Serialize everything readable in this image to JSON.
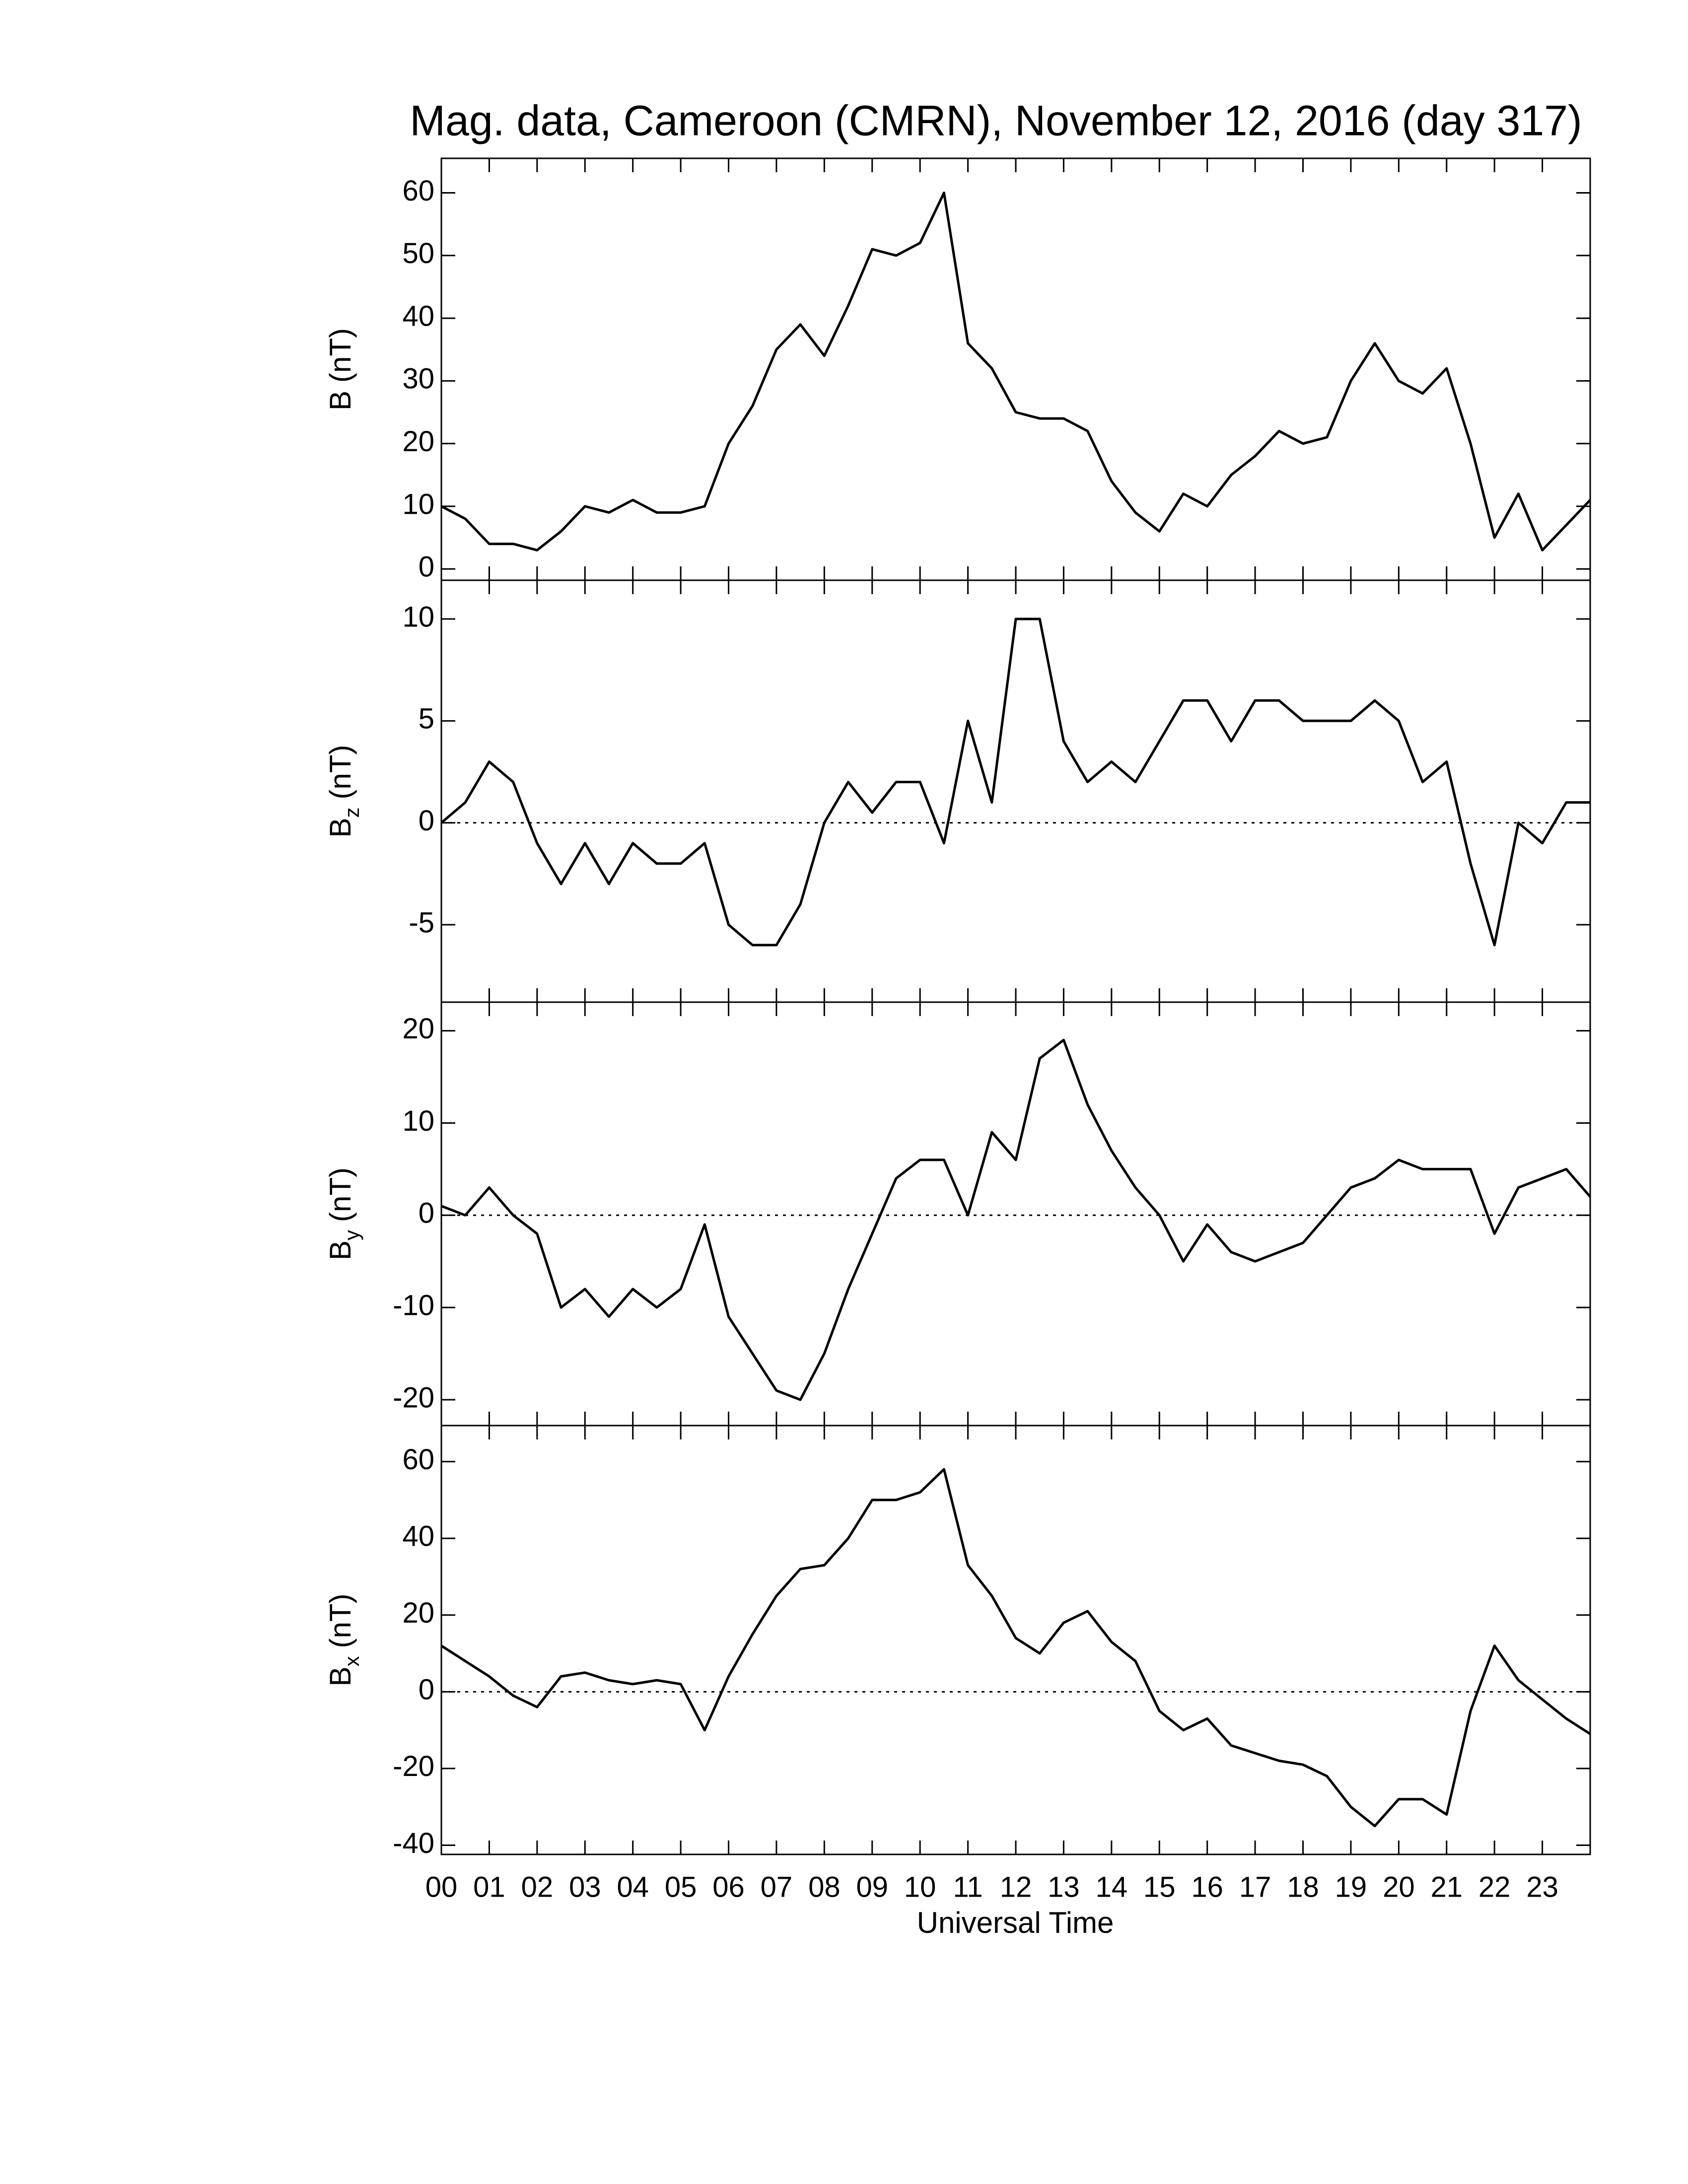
{
  "chart_data": [
    {
      "type": "line",
      "title": "Mag. data, Cameroon (CMRN), November 12, 2016 (day 317)",
      "ylabel": {
        "text": "B",
        "sub": "",
        "rest": "(nT)"
      },
      "x": [
        0,
        0.5,
        1,
        1.5,
        2,
        2.5,
        3,
        3.5,
        4,
        4.5,
        5,
        5.5,
        6,
        6.5,
        7,
        7.5,
        8,
        8.5,
        9,
        9.5,
        10,
        10.5,
        11,
        11.5,
        12,
        12.5,
        13,
        13.5,
        14,
        14.5,
        15,
        15.5,
        16,
        16.5,
        17,
        17.5,
        18,
        18.5,
        19,
        19.5,
        20,
        20.5,
        21,
        21.5,
        22,
        22.5,
        23,
        23.5,
        24
      ],
      "values": [
        10,
        8,
        4,
        4,
        3,
        6,
        10,
        9,
        11,
        9,
        9,
        10,
        20,
        26,
        35,
        39,
        34,
        42,
        51,
        50,
        52,
        60,
        36,
        32,
        25,
        24,
        24,
        22,
        14,
        9,
        6,
        12,
        10,
        15,
        18,
        22,
        20,
        21,
        30,
        36,
        30,
        28,
        32,
        20,
        5,
        12,
        3,
        7,
        11
      ],
      "color": "#000000",
      "xlim": [
        0,
        24
      ],
      "ylim": [
        -1.8,
        65.5
      ],
      "yticks": [
        0,
        10,
        20,
        30,
        40,
        50,
        60
      ],
      "zero_line": false
    },
    {
      "type": "line",
      "ylabel": {
        "text": "B",
        "sub": "z",
        "rest": "(nT)"
      },
      "x": [
        0,
        0.5,
        1,
        1.5,
        2,
        2.5,
        3,
        3.5,
        4,
        4.5,
        5,
        5.5,
        6,
        6.5,
        7,
        7.5,
        8,
        8.5,
        9,
        9.5,
        10,
        10.5,
        11,
        11.5,
        12,
        12.5,
        13,
        13.5,
        14,
        14.5,
        15,
        15.5,
        16,
        16.5,
        17,
        17.5,
        18,
        18.5,
        19,
        19.5,
        20,
        20.5,
        21,
        21.5,
        22,
        22.5,
        23,
        23.5,
        24
      ],
      "values": [
        0,
        1,
        3,
        2,
        -1,
        -3,
        -1,
        -3,
        -1,
        -2,
        -2,
        -1,
        -5,
        -6,
        -6,
        -4,
        0,
        2,
        0.5,
        2,
        2,
        -1,
        5,
        1,
        10,
        10,
        4,
        2,
        3,
        2,
        4,
        6,
        6,
        4,
        6,
        6,
        5,
        5,
        5,
        6,
        5,
        2,
        3,
        -2,
        -6,
        0,
        -1,
        1,
        1
      ],
      "color": "#000000",
      "xlim": [
        0,
        24
      ],
      "ylim": [
        -8.8,
        11.9
      ],
      "yticks": [
        -5,
        0,
        5,
        10
      ],
      "zero_line": true
    },
    {
      "type": "line",
      "ylabel": {
        "text": "B",
        "sub": "y",
        "rest": "(nT)"
      },
      "x": [
        0,
        0.5,
        1,
        1.5,
        2,
        2.5,
        3,
        3.5,
        4,
        4.5,
        5,
        5.5,
        6,
        6.5,
        7,
        7.5,
        8,
        8.5,
        9,
        9.5,
        10,
        10.5,
        11,
        11.5,
        12,
        12.5,
        13,
        13.5,
        14,
        14.5,
        15,
        15.5,
        16,
        16.5,
        17,
        17.5,
        18,
        18.5,
        19,
        19.5,
        20,
        20.5,
        21,
        21.5,
        22,
        22.5,
        23,
        23.5,
        24
      ],
      "values": [
        1,
        0,
        3,
        0,
        -2,
        -10,
        -8,
        -11,
        -8,
        -10,
        -8,
        -1,
        -11,
        -15,
        -19,
        -20,
        -15,
        -8,
        -2,
        4,
        6,
        6,
        0,
        9,
        6,
        17,
        19,
        12,
        7,
        3,
        0,
        -5,
        -1,
        -4,
        -5,
        -4,
        -3,
        0,
        3,
        4,
        6,
        5,
        5,
        5,
        -2,
        3,
        4,
        5,
        2
      ],
      "color": "#000000",
      "xlim": [
        0,
        24
      ],
      "ylim": [
        -22.8,
        23.1
      ],
      "yticks": [
        -20,
        -10,
        0,
        10,
        20
      ],
      "zero_line": true
    },
    {
      "type": "line",
      "ylabel": {
        "text": "B",
        "sub": "x",
        "rest": "(nT)"
      },
      "xlabel": "Universal Time",
      "x": [
        0,
        0.5,
        1,
        1.5,
        2,
        2.5,
        3,
        3.5,
        4,
        4.5,
        5,
        5.5,
        6,
        6.5,
        7,
        7.5,
        8,
        8.5,
        9,
        9.5,
        10,
        10.5,
        11,
        11.5,
        12,
        12.5,
        13,
        13.5,
        14,
        14.5,
        15,
        15.5,
        16,
        16.5,
        17,
        17.5,
        18,
        18.5,
        19,
        19.5,
        20,
        20.5,
        21,
        21.5,
        22,
        22.5,
        23,
        23.5,
        24
      ],
      "values": [
        12,
        8,
        4,
        -1,
        -4,
        4,
        5,
        3,
        2,
        3,
        2,
        -10,
        4,
        15,
        25,
        32,
        33,
        40,
        50,
        50,
        52,
        58,
        33,
        25,
        14,
        10,
        18,
        21,
        13,
        8,
        -5,
        -10,
        -7,
        -14,
        -16,
        -18,
        -19,
        -22,
        -30,
        -35,
        -28,
        -28,
        -32,
        -5,
        12,
        3,
        -2,
        -7,
        -11
      ],
      "color": "#000000",
      "xlim": [
        0,
        24
      ],
      "ylim": [
        -42.4,
        69.4
      ],
      "yticks": [
        -40,
        -20,
        0,
        20,
        40,
        60
      ],
      "zero_line": true,
      "xticks": [
        {
          "value": 0,
          "label": "00"
        },
        {
          "value": 1,
          "label": "01"
        },
        {
          "value": 2,
          "label": "02"
        },
        {
          "value": 3,
          "label": "03"
        },
        {
          "value": 4,
          "label": "04"
        },
        {
          "value": 5,
          "label": "05"
        },
        {
          "value": 6,
          "label": "06"
        },
        {
          "value": 7,
          "label": "07"
        },
        {
          "value": 8,
          "label": "08"
        },
        {
          "value": 9,
          "label": "09"
        },
        {
          "value": 10,
          "label": "10"
        },
        {
          "value": 11,
          "label": "11"
        },
        {
          "value": 12,
          "label": "12"
        },
        {
          "value": 13,
          "label": "13"
        },
        {
          "value": 14,
          "label": "14"
        },
        {
          "value": 15,
          "label": "15"
        },
        {
          "value": 16,
          "label": "16"
        },
        {
          "value": 17,
          "label": "17"
        },
        {
          "value": 18,
          "label": "18"
        },
        {
          "value": 19,
          "label": "19"
        },
        {
          "value": 20,
          "label": "20"
        },
        {
          "value": 21,
          "label": "21"
        },
        {
          "value": 22,
          "label": "22"
        },
        {
          "value": 23,
          "label": "23"
        }
      ]
    }
  ]
}
